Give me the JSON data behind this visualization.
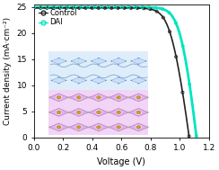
{
  "title": "",
  "xlabel": "Voltage (V)",
  "ylabel": "Current density (mA·cm⁻²)",
  "xlim": [
    0.0,
    1.2
  ],
  "ylim": [
    0.0,
    25.5
  ],
  "yticks": [
    0,
    5,
    10,
    15,
    20,
    25
  ],
  "xticks": [
    0.0,
    0.2,
    0.4,
    0.6,
    0.8,
    1.0,
    1.2
  ],
  "control_color": "#222222",
  "dai_color": "#00e5c0",
  "control_jsc": 24.8,
  "control_voc": 1.065,
  "control_ff": 0.74,
  "dai_jsc": 24.95,
  "dai_voc": 1.115,
  "dai_ff": 0.8,
  "legend_labels": [
    "Control",
    "DAI"
  ],
  "figsize": [
    2.44,
    1.89
  ],
  "dpi": 100,
  "pink_color": "#e0a0e8",
  "blue_color": "#a8c8f0",
  "gold_color": "#c8a020",
  "gray_color": "#888888",
  "dark_purple": "#9060a0"
}
